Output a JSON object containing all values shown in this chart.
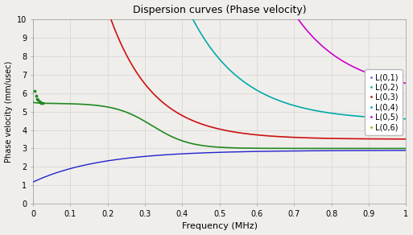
{
  "title": "Dispersion curves (Phase velocity)",
  "xlabel": "Frequency (MHz)",
  "ylabel": "Phase velocity (mm/usec)",
  "xlim": [
    0,
    1
  ],
  "ylim": [
    0,
    10
  ],
  "xticks": [
    0,
    0.1,
    0.2,
    0.3,
    0.4,
    0.5,
    0.6,
    0.7,
    0.8,
    0.9,
    1
  ],
  "yticks": [
    0,
    1,
    2,
    3,
    4,
    5,
    6,
    7,
    8,
    9,
    10
  ],
  "bg_color": "#f0eeeb",
  "grid_color": "#d8d8d8",
  "curves": {
    "L01": {
      "color": "#2222cc",
      "label": "L(0,1)",
      "legend_color": "#6666ff"
    },
    "L02": {
      "color": "#228822",
      "label": "L(0,2)",
      "legend_color": "#00bb88"
    },
    "L03": {
      "color": "#cc1111",
      "label": "L(0,3)",
      "legend_color": "#cc1111"
    },
    "L04": {
      "color": "#00aaaa",
      "label": "L(0,4)",
      "legend_color": "#00aaaa"
    },
    "L05": {
      "color": "#cc00cc",
      "label": "L(0,5)",
      "legend_color": "#cc00cc"
    },
    "L06": {
      "color": "#aaaa00",
      "label": "L(0,6)",
      "legend_color": "#aaaa00"
    }
  }
}
